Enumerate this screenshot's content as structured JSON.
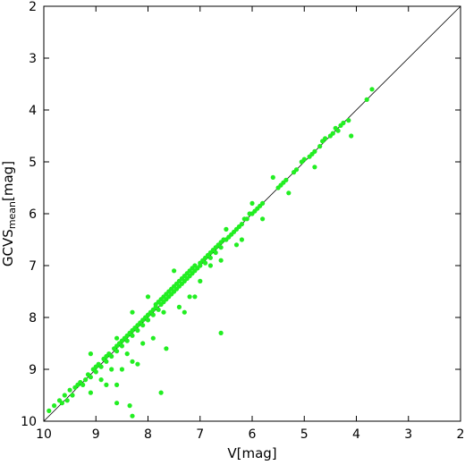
{
  "chart_data": {
    "type": "scatter",
    "xlabel": "V[mag]",
    "ylabel": "GCVS",
    "ylabel_sub": "mean",
    "ylabel_suffix": "[mag]",
    "xlim": [
      10,
      2
    ],
    "ylim": [
      2,
      10
    ],
    "x_ticks": [
      10,
      9,
      8,
      7,
      6,
      5,
      4,
      3,
      2
    ],
    "y_ticks": [
      2,
      3,
      4,
      5,
      6,
      7,
      8,
      9,
      10
    ],
    "grid": false,
    "reference_line": {
      "from": [
        10,
        10
      ],
      "to": [
        2,
        2
      ],
      "color": "#000000"
    },
    "point_color": "#22ee22",
    "points": [
      [
        9.9,
        9.8
      ],
      [
        9.8,
        9.7
      ],
      [
        9.7,
        9.6
      ],
      [
        9.65,
        9.65
      ],
      [
        9.6,
        9.5
      ],
      [
        9.55,
        9.6
      ],
      [
        9.5,
        9.4
      ],
      [
        9.45,
        9.5
      ],
      [
        9.4,
        9.35
      ],
      [
        9.35,
        9.3
      ],
      [
        9.3,
        9.25
      ],
      [
        9.25,
        9.3
      ],
      [
        9.2,
        9.2
      ],
      [
        9.15,
        9.1
      ],
      [
        9.1,
        9.15
      ],
      [
        9.05,
        9.0
      ],
      [
        9.0,
        9.05
      ],
      [
        9.0,
        8.95
      ],
      [
        8.95,
        8.9
      ],
      [
        8.9,
        8.95
      ],
      [
        8.85,
        8.8
      ],
      [
        8.8,
        8.85
      ],
      [
        8.8,
        8.75
      ],
      [
        8.75,
        8.7
      ],
      [
        8.7,
        8.75
      ],
      [
        8.65,
        8.6
      ],
      [
        8.6,
        8.65
      ],
      [
        8.6,
        8.55
      ],
      [
        8.55,
        8.5
      ],
      [
        8.5,
        8.55
      ],
      [
        8.5,
        8.45
      ],
      [
        8.45,
        8.4
      ],
      [
        8.4,
        8.45
      ],
      [
        8.4,
        8.35
      ],
      [
        8.35,
        8.3
      ],
      [
        8.3,
        8.35
      ],
      [
        8.3,
        8.25
      ],
      [
        8.25,
        8.2
      ],
      [
        8.2,
        8.25
      ],
      [
        8.2,
        8.15
      ],
      [
        8.15,
        8.1
      ],
      [
        8.1,
        8.15
      ],
      [
        8.1,
        8.05
      ],
      [
        8.05,
        8.0
      ],
      [
        8.0,
        8.05
      ],
      [
        8.0,
        7.95
      ],
      [
        7.95,
        7.9
      ],
      [
        7.9,
        7.95
      ],
      [
        7.9,
        7.85
      ],
      [
        7.85,
        7.8
      ],
      [
        7.85,
        7.75
      ],
      [
        7.8,
        7.85
      ],
      [
        7.8,
        7.7
      ],
      [
        7.75,
        7.75
      ],
      [
        7.75,
        7.65
      ],
      [
        7.7,
        7.7
      ],
      [
        7.7,
        7.6
      ],
      [
        7.65,
        7.65
      ],
      [
        7.65,
        7.55
      ],
      [
        7.6,
        7.6
      ],
      [
        7.6,
        7.5
      ],
      [
        7.55,
        7.55
      ],
      [
        7.55,
        7.45
      ],
      [
        7.5,
        7.5
      ],
      [
        7.5,
        7.4
      ],
      [
        7.45,
        7.45
      ],
      [
        7.45,
        7.35
      ],
      [
        7.4,
        7.4
      ],
      [
        7.4,
        7.3
      ],
      [
        7.35,
        7.35
      ],
      [
        7.35,
        7.25
      ],
      [
        7.3,
        7.3
      ],
      [
        7.3,
        7.2
      ],
      [
        7.25,
        7.25
      ],
      [
        7.25,
        7.15
      ],
      [
        7.2,
        7.2
      ],
      [
        7.2,
        7.1
      ],
      [
        7.15,
        7.15
      ],
      [
        7.15,
        7.05
      ],
      [
        7.1,
        7.1
      ],
      [
        7.1,
        7.0
      ],
      [
        7.05,
        7.05
      ],
      [
        7.0,
        7.0
      ],
      [
        7.0,
        6.95
      ],
      [
        6.95,
        6.9
      ],
      [
        6.9,
        6.95
      ],
      [
        6.9,
        6.85
      ],
      [
        6.85,
        6.8
      ],
      [
        6.8,
        6.85
      ],
      [
        6.8,
        6.75
      ],
      [
        6.75,
        6.7
      ],
      [
        6.7,
        6.75
      ],
      [
        6.7,
        6.65
      ],
      [
        6.65,
        6.6
      ],
      [
        6.6,
        6.65
      ],
      [
        6.6,
        6.55
      ],
      [
        6.55,
        6.5
      ],
      [
        6.5,
        6.5
      ],
      [
        6.45,
        6.45
      ],
      [
        6.4,
        6.4
      ],
      [
        6.35,
        6.35
      ],
      [
        6.3,
        6.3
      ],
      [
        6.25,
        6.25
      ],
      [
        6.2,
        6.2
      ],
      [
        6.15,
        6.1
      ],
      [
        6.1,
        6.1
      ],
      [
        6.05,
        6.0
      ],
      [
        6.0,
        6.0
      ],
      [
        5.95,
        5.95
      ],
      [
        5.9,
        5.9
      ],
      [
        5.85,
        5.85
      ],
      [
        5.8,
        5.8
      ],
      [
        5.5,
        5.5
      ],
      [
        5.45,
        5.45
      ],
      [
        5.4,
        5.4
      ],
      [
        5.35,
        5.35
      ],
      [
        5.2,
        5.2
      ],
      [
        5.15,
        5.15
      ],
      [
        5.05,
        5.0
      ],
      [
        5.0,
        4.95
      ],
      [
        4.9,
        4.9
      ],
      [
        4.85,
        4.85
      ],
      [
        4.8,
        4.8
      ],
      [
        4.7,
        4.7
      ],
      [
        4.65,
        4.6
      ],
      [
        4.6,
        4.55
      ],
      [
        4.5,
        4.5
      ],
      [
        4.45,
        4.45
      ],
      [
        4.4,
        4.35
      ],
      [
        4.35,
        4.4
      ],
      [
        4.3,
        4.3
      ],
      [
        4.25,
        4.25
      ],
      [
        4.15,
        4.2
      ],
      [
        3.8,
        3.8
      ],
      [
        3.7,
        3.6
      ],
      [
        8.0,
        7.6
      ],
      [
        7.7,
        7.9
      ],
      [
        7.5,
        7.1
      ],
      [
        7.2,
        7.6
      ],
      [
        6.8,
        7.0
      ],
      [
        6.5,
        6.3
      ],
      [
        6.3,
        6.6
      ],
      [
        6.0,
        5.8
      ],
      [
        5.8,
        6.1
      ],
      [
        8.3,
        7.9
      ],
      [
        8.6,
        8.4
      ],
      [
        9.1,
        8.7
      ],
      [
        5.3,
        5.6
      ],
      [
        4.1,
        4.5
      ],
      [
        4.8,
        5.1
      ],
      [
        5.6,
        5.3
      ],
      [
        7.9,
        8.4
      ],
      [
        8.1,
        8.5
      ],
      [
        8.4,
        8.7
      ],
      [
        8.7,
        9.0
      ],
      [
        8.9,
        9.2
      ],
      [
        8.2,
        8.9
      ],
      [
        8.5,
        9.0
      ],
      [
        8.8,
        9.3
      ],
      [
        7.3,
        7.9
      ],
      [
        7.0,
        7.3
      ],
      [
        6.6,
        6.9
      ],
      [
        6.2,
        6.5
      ],
      [
        7.4,
        7.8
      ],
      [
        7.1,
        7.6
      ],
      [
        8.6,
        9.3
      ],
      [
        9.1,
        9.45
      ],
      [
        7.75,
        9.45
      ],
      [
        8.6,
        9.65
      ],
      [
        8.35,
        9.7
      ],
      [
        8.3,
        9.9
      ],
      [
        7.65,
        8.6
      ],
      [
        6.6,
        8.3
      ],
      [
        8.3,
        8.85
      ]
    ]
  }
}
